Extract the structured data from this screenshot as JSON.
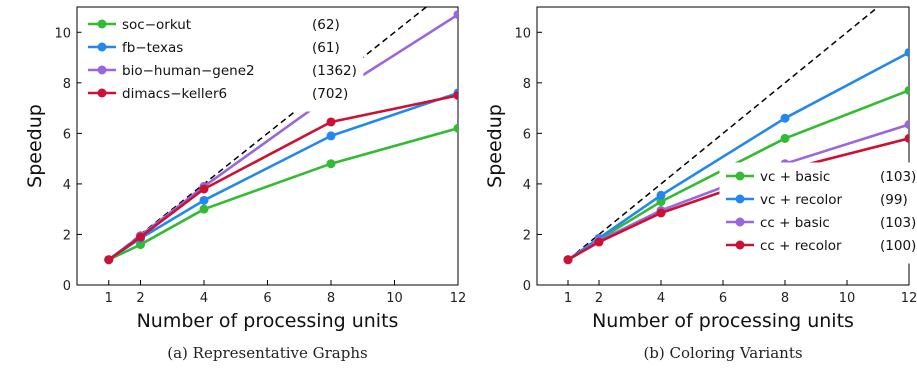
{
  "chart_data": [
    {
      "type": "line",
      "caption": "(a) Representative Graphs",
      "xlabel": "Number of processing units",
      "ylabel": "Speedup",
      "xlim": [
        0,
        12
      ],
      "ylim": [
        0,
        11
      ],
      "x": [
        1,
        2,
        4,
        8,
        12
      ],
      "xticks": [
        1,
        2,
        4,
        6,
        8,
        10,
        12
      ],
      "yticks": [
        0,
        2,
        4,
        6,
        8,
        10
      ],
      "grid": false,
      "legend_position": "top-left",
      "ideal_line": true,
      "series": [
        {
          "name": "soc−orkut",
          "count": "(62)",
          "color": "#33bb33",
          "values": [
            1,
            1.6,
            3.0,
            4.8,
            6.2
          ]
        },
        {
          "name": "fb−texas",
          "count": "(61)",
          "color": "#2288ee",
          "values": [
            1,
            1.85,
            3.35,
            5.9,
            7.6
          ]
        },
        {
          "name": "bio−human−gene2",
          "count": "(1362)",
          "color": "#9966dd",
          "values": [
            1,
            1.95,
            3.9,
            7.5,
            10.7
          ]
        },
        {
          "name": "dimacs−keller6",
          "count": "(702)",
          "color": "#cc1133",
          "values": [
            1,
            1.9,
            3.8,
            6.45,
            7.5
          ]
        }
      ]
    },
    {
      "type": "line",
      "caption": "(b) Coloring Variants",
      "xlabel": "Number of processing units",
      "ylabel": "Speedup",
      "xlim": [
        0,
        12
      ],
      "ylim": [
        0,
        11
      ],
      "x": [
        1,
        2,
        4,
        8,
        12
      ],
      "xticks": [
        1,
        2,
        4,
        6,
        8,
        10,
        12
      ],
      "yticks": [
        0,
        2,
        4,
        6,
        8,
        10
      ],
      "grid": false,
      "legend_position": "bottom-right",
      "ideal_line": true,
      "series": [
        {
          "name": "vc + basic",
          "count": "(103)",
          "color": "#33bb33",
          "values": [
            1,
            1.8,
            3.3,
            5.8,
            7.7
          ]
        },
        {
          "name": "vc + recolor",
          "count": "(99)",
          "color": "#2288ee",
          "values": [
            1,
            1.85,
            3.55,
            6.6,
            9.2
          ]
        },
        {
          "name": "cc + basic",
          "count": "(103)",
          "color": "#9966dd",
          "values": [
            1,
            1.75,
            2.95,
            4.8,
            6.35
          ]
        },
        {
          "name": "cc + recolor",
          "count": "(100)",
          "color": "#cc1133",
          "values": [
            1,
            1.7,
            2.85,
            4.55,
            5.8
          ]
        }
      ]
    }
  ]
}
